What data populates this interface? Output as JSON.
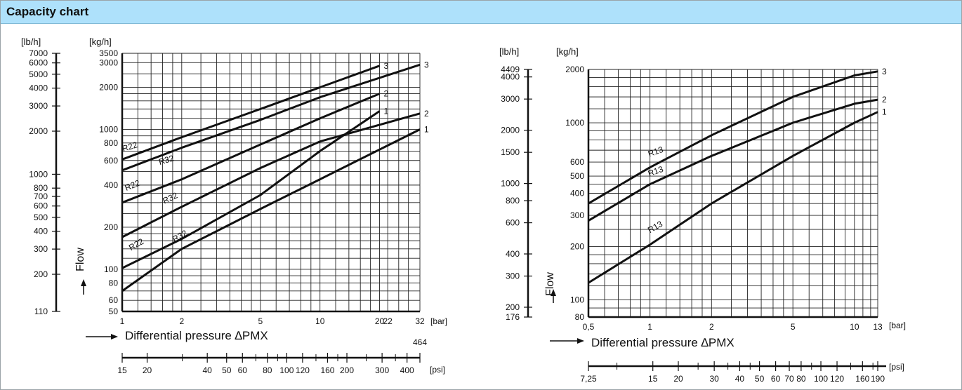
{
  "header": {
    "title": "Capacity chart"
  },
  "chart_data": [
    {
      "type": "line",
      "xscale": "log",
      "yscale": "log",
      "xlim": [
        1,
        32
      ],
      "ylim": [
        50,
        3500
      ],
      "x_unit_label": "[bar]",
      "y_unit_label": "[kg/h]",
      "alt_y_unit_label": "[lb/h]",
      "alt_x_unit_label": "[psi]",
      "ylabel": "Flow",
      "xlabel": "Differential pressure ∆PMX",
      "x_ticks": [
        {
          "v": 1,
          "label": "1"
        },
        {
          "v": 2,
          "label": "2"
        },
        {
          "v": 5,
          "label": "5"
        },
        {
          "v": 10,
          "label": "10"
        },
        {
          "v": 20,
          "label": "20"
        },
        {
          "v": 22,
          "label": "22"
        },
        {
          "v": 32,
          "label": "32"
        }
      ],
      "x_gridlines": [
        1.2,
        1.4,
        1.6,
        1.8,
        2,
        2.5,
        3,
        3.5,
        4,
        4.5,
        5,
        6,
        7,
        8,
        9,
        10,
        12,
        14,
        16,
        18,
        20,
        22,
        25,
        28,
        32
      ],
      "y_ticks": [
        {
          "v": 50,
          "label": "50"
        },
        {
          "v": 60,
          "label": "60"
        },
        {
          "v": 80,
          "label": "80"
        },
        {
          "v": 100,
          "label": "100"
        },
        {
          "v": 200,
          "label": "200"
        },
        {
          "v": 400,
          "label": "400"
        },
        {
          "v": 600,
          "label": "600"
        },
        {
          "v": 800,
          "label": "800"
        },
        {
          "v": 1000,
          "label": "1000"
        },
        {
          "v": 2000,
          "label": "2000"
        },
        {
          "v": 3000,
          "label": "3000"
        },
        {
          "v": 3500,
          "label": "3500"
        }
      ],
      "y_gridlines": [
        50,
        60,
        70,
        80,
        90,
        100,
        120,
        140,
        160,
        180,
        200,
        250,
        300,
        350,
        400,
        500,
        600,
        700,
        800,
        900,
        1000,
        1200,
        1400,
        1600,
        1800,
        2000,
        2500,
        3000,
        3500
      ],
      "alt_y_ticks": [
        {
          "v": 110,
          "label": "110"
        },
        {
          "v": 200,
          "label": "200"
        },
        {
          "v": 300,
          "label": "300"
        },
        {
          "v": 400,
          "label": "400"
        },
        {
          "v": 500,
          "label": "500"
        },
        {
          "v": 600,
          "label": "600"
        },
        {
          "v": 700,
          "label": "700"
        },
        {
          "v": 800,
          "label": "800"
        },
        {
          "v": 1000,
          "label": "1000"
        },
        {
          "v": 2000,
          "label": "2000"
        },
        {
          "v": 3000,
          "label": "3000"
        },
        {
          "v": 4000,
          "label": "4000"
        },
        {
          "v": 5000,
          "label": "5000"
        },
        {
          "v": 6000,
          "label": "6000"
        },
        {
          "v": 7000,
          "label": "7000"
        }
      ],
      "alt_x_ticks": [
        {
          "v": 15,
          "label": "15"
        },
        {
          "v": 20,
          "label": "20"
        },
        {
          "v": 40,
          "label": "40"
        },
        {
          "v": 50,
          "label": "50"
        },
        {
          "v": 60,
          "label": "60"
        },
        {
          "v": 80,
          "label": "80"
        },
        {
          "v": 100,
          "label": "100"
        },
        {
          "v": 120,
          "label": "120"
        },
        {
          "v": 160,
          "label": "160"
        },
        {
          "v": 200,
          "label": "200"
        },
        {
          "v": 300,
          "label": "300"
        },
        {
          "v": 400,
          "label": "400"
        }
      ],
      "alt_x_extra_tick": {
        "v": 464,
        "label": "464"
      },
      "alt_x_minor_ticks": [
        30,
        70,
        90,
        140,
        180,
        250,
        350
      ],
      "series": [
        {
          "name": "R22",
          "end_label": "3",
          "x": [
            1,
            2,
            5,
            10,
            20
          ],
          "y": [
            610,
            880,
            1400,
            2000,
            2850
          ]
        },
        {
          "name": "R32",
          "end_label": "3",
          "x": [
            1,
            2,
            5,
            10,
            32
          ],
          "y": [
            510,
            740,
            1170,
            1700,
            2900
          ]
        },
        {
          "name": "R22",
          "end_label": "2",
          "x": [
            1,
            2,
            5,
            10,
            20
          ],
          "y": [
            300,
            440,
            780,
            1200,
            1800
          ]
        },
        {
          "name": "R32",
          "end_label": "2",
          "x": [
            1,
            2,
            5,
            10,
            32
          ],
          "y": [
            170,
            280,
            530,
            820,
            1300
          ]
        },
        {
          "name": "R22",
          "end_label": "1",
          "x": [
            1,
            2,
            5,
            10,
            20
          ],
          "y": [
            102,
            165,
            340,
            700,
            1350
          ]
        },
        {
          "name": "R32",
          "end_label": "1",
          "x": [
            1,
            2,
            5,
            10,
            32
          ],
          "y": [
            70,
            140,
            270,
            440,
            1000
          ]
        }
      ]
    },
    {
      "type": "line",
      "xscale": "log",
      "yscale": "log",
      "xlim": [
        0.5,
        13
      ],
      "ylim": [
        80,
        2000
      ],
      "x_unit_label": "[bar]",
      "y_unit_label": "[kg/h]",
      "alt_y_unit_label": "[lb/h]",
      "alt_x_unit_label": "[psi]",
      "ylabel": "Flow",
      "xlabel": "Differential pressure ∆PMX",
      "x_ticks": [
        {
          "v": 0.5,
          "label": "0,5"
        },
        {
          "v": 1,
          "label": "1"
        },
        {
          "v": 2,
          "label": "2"
        },
        {
          "v": 5,
          "label": "5"
        },
        {
          "v": 10,
          "label": "10"
        },
        {
          "v": 13,
          "label": "13"
        }
      ],
      "x_gridlines": [
        0.5,
        0.6,
        0.7,
        0.8,
        0.9,
        1,
        1.2,
        1.4,
        1.6,
        1.8,
        2,
        2.5,
        3,
        3.5,
        4,
        4.5,
        5,
        6,
        7,
        8,
        9,
        10,
        11,
        12,
        13
      ],
      "y_ticks": [
        {
          "v": 80,
          "label": "80"
        },
        {
          "v": 100,
          "label": "100"
        },
        {
          "v": 200,
          "label": "200"
        },
        {
          "v": 300,
          "label": "300"
        },
        {
          "v": 400,
          "label": "400"
        },
        {
          "v": 500,
          "label": "500"
        },
        {
          "v": 600,
          "label": "600"
        },
        {
          "v": 1000,
          "label": "1000"
        },
        {
          "v": 2000,
          "label": "2000"
        }
      ],
      "y_gridlines": [
        80,
        90,
        100,
        120,
        140,
        160,
        180,
        200,
        250,
        300,
        350,
        400,
        450,
        500,
        600,
        700,
        800,
        900,
        1000,
        1200,
        1400,
        1600,
        1800,
        2000
      ],
      "alt_y_ticks": [
        {
          "v": 176,
          "label": "176"
        },
        {
          "v": 200,
          "label": "200"
        },
        {
          "v": 300,
          "label": "300"
        },
        {
          "v": 400,
          "label": "400"
        },
        {
          "v": 600,
          "label": "600"
        },
        {
          "v": 800,
          "label": "800"
        },
        {
          "v": 1000,
          "label": "1000"
        },
        {
          "v": 1500,
          "label": "1500"
        },
        {
          "v": 2000,
          "label": "2000"
        },
        {
          "v": 3000,
          "label": "3000"
        },
        {
          "v": 4000,
          "label": "4000"
        },
        {
          "v": 4409,
          "label": "4409"
        }
      ],
      "alt_x_ticks": [
        {
          "v": 7.25,
          "label": "7,25"
        },
        {
          "v": 15,
          "label": "15"
        },
        {
          "v": 20,
          "label": "20"
        },
        {
          "v": 30,
          "label": "30"
        },
        {
          "v": 40,
          "label": "40"
        },
        {
          "v": 50,
          "label": "50"
        },
        {
          "v": 60,
          "label": "60"
        },
        {
          "v": 70,
          "label": "70"
        },
        {
          "v": 80,
          "label": "80"
        },
        {
          "v": 100,
          "label": "100"
        },
        {
          "v": 120,
          "label": "120"
        },
        {
          "v": 160,
          "label": "160"
        },
        {
          "v": 190,
          "label": "190"
        }
      ],
      "alt_x_minor_ticks": [
        10,
        25,
        35,
        45,
        90,
        140,
        180
      ],
      "series": [
        {
          "name": "R13",
          "end_label": "3",
          "x": [
            0.5,
            1,
            2,
            5,
            10,
            13
          ],
          "y": [
            350,
            560,
            850,
            1400,
            1850,
            1950
          ]
        },
        {
          "name": "R13",
          "end_label": "2",
          "x": [
            0.5,
            1,
            2,
            5,
            10,
            13
          ],
          "y": [
            280,
            450,
            650,
            1000,
            1280,
            1350
          ]
        },
        {
          "name": "R13",
          "end_label": "1",
          "x": [
            0.5,
            1,
            2,
            5,
            10,
            13
          ],
          "y": [
            125,
            205,
            350,
            650,
            1000,
            1150
          ]
        }
      ]
    }
  ]
}
